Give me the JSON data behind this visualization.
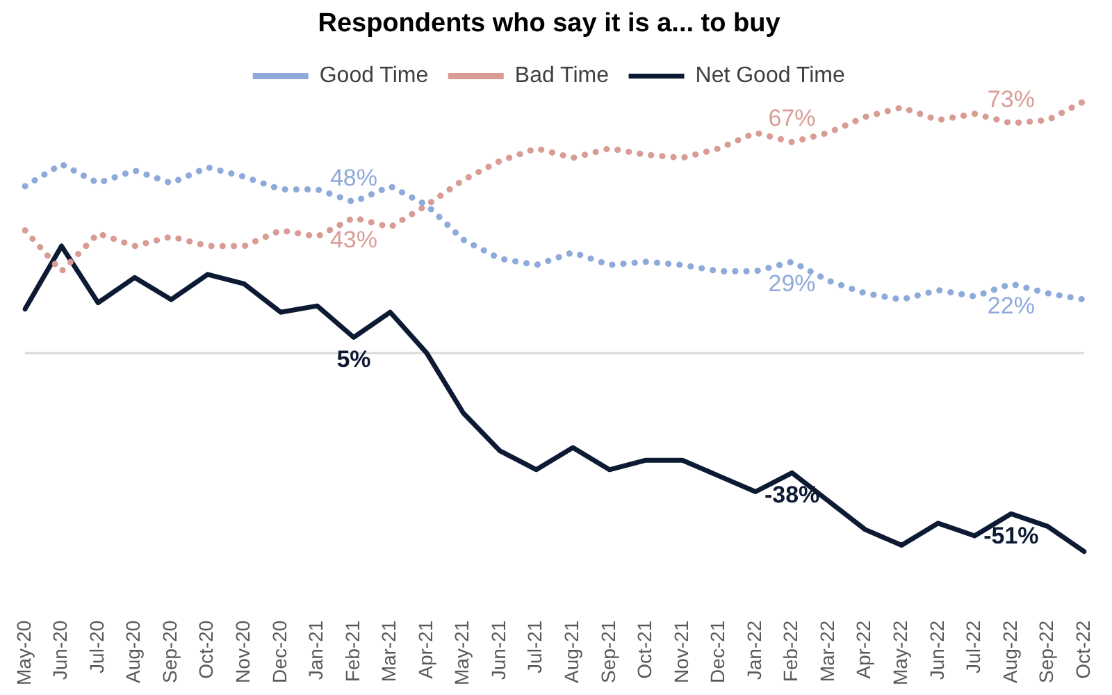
{
  "chart_data": {
    "type": "line",
    "title": "Respondents who say it is a... to buy",
    "categories": [
      "May-20",
      "Jun-20",
      "Jul-20",
      "Aug-20",
      "Sep-20",
      "Oct-20",
      "Nov-20",
      "Dec-20",
      "Jan-21",
      "Feb-21",
      "Mar-21",
      "Apr-21",
      "May-21",
      "Jun-21",
      "Jul-21",
      "Aug-21",
      "Sep-21",
      "Oct-21",
      "Nov-21",
      "Dec-21",
      "Jan-22",
      "Feb-22",
      "Mar-22",
      "Apr-22",
      "May-22",
      "Jun-22",
      "Jul-22",
      "Aug-22",
      "Sep-22",
      "Oct-22"
    ],
    "series": [
      {
        "name": "Good Time",
        "color": "#8eaadb",
        "line_style": "dotted",
        "values": [
          53,
          60,
          54,
          58,
          54,
          59,
          56,
          52,
          52,
          48,
          53,
          47,
          36,
          30,
          28,
          32,
          28,
          29,
          28,
          26,
          26,
          29,
          23,
          19,
          17,
          20,
          18,
          22,
          19,
          17
        ],
        "value_labels": [
          null,
          null,
          null,
          null,
          null,
          null,
          null,
          null,
          null,
          "48%",
          null,
          null,
          null,
          null,
          null,
          null,
          null,
          null,
          null,
          null,
          null,
          "29%",
          null,
          null,
          null,
          null,
          null,
          "22%",
          null,
          null
        ]
      },
      {
        "name": "Bad Time",
        "color": "#d99c95",
        "line_style": "dotted",
        "values": [
          39,
          26,
          38,
          34,
          37,
          34,
          34,
          39,
          37,
          43,
          40,
          47,
          55,
          61,
          65,
          62,
          65,
          63,
          62,
          65,
          70,
          67,
          70,
          75,
          78,
          74,
          76,
          73,
          74,
          80
        ],
        "value_labels": [
          null,
          null,
          null,
          null,
          null,
          null,
          null,
          null,
          null,
          "43%",
          null,
          null,
          null,
          null,
          null,
          null,
          null,
          null,
          null,
          null,
          null,
          "67%",
          null,
          null,
          null,
          null,
          null,
          "73%",
          null,
          null
        ]
      },
      {
        "name": "Net Good Time",
        "color": "#0d1a33",
        "line_style": "solid",
        "values": [
          14,
          34,
          16,
          24,
          17,
          25,
          22,
          13,
          15,
          5,
          13,
          0,
          -19,
          -31,
          -37,
          -30,
          -37,
          -34,
          -34,
          -39,
          -44,
          -38,
          -47,
          -56,
          -61,
          -54,
          -58,
          -51,
          -55,
          -63
        ],
        "value_labels": [
          null,
          null,
          null,
          null,
          null,
          null,
          null,
          null,
          null,
          "5%",
          null,
          null,
          null,
          null,
          null,
          null,
          null,
          null,
          null,
          null,
          null,
          "-38%",
          null,
          null,
          null,
          null,
          null,
          "-51%",
          null,
          null
        ]
      }
    ],
    "ref_lines": [
      {
        "axis": "y",
        "value": 0,
        "color": "#d9d9d9"
      }
    ],
    "legend": "top",
    "grid": false,
    "marker": "none",
    "tick_labels": "x"
  }
}
